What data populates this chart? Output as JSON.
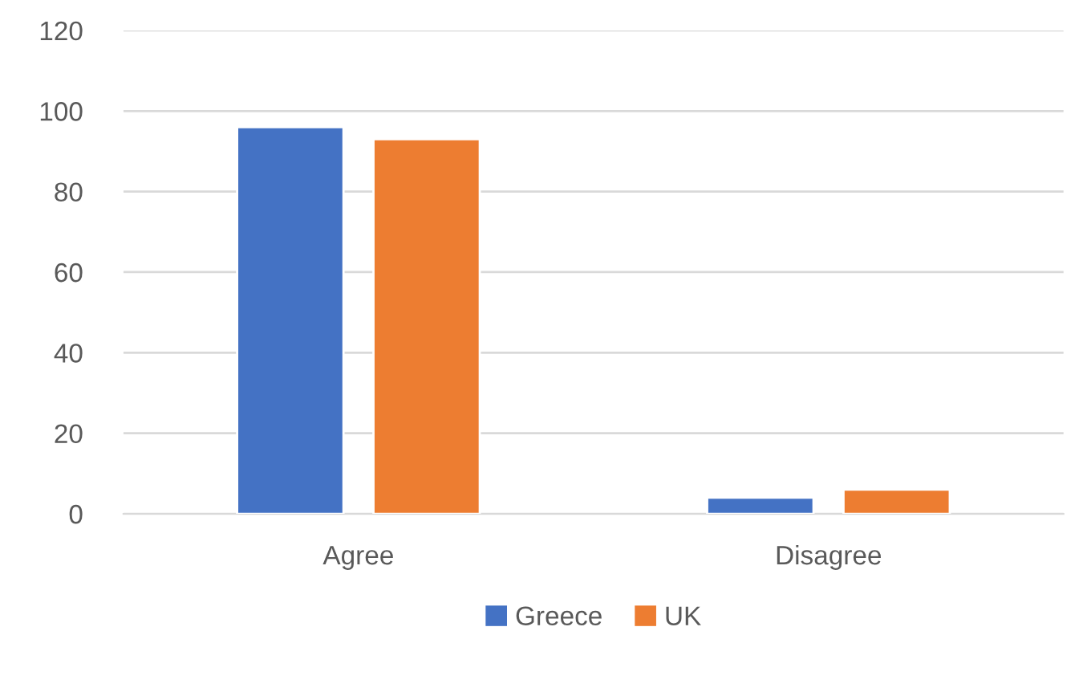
{
  "chart_data": {
    "type": "bar",
    "categories": [
      "Agree",
      "Disagree"
    ],
    "series": [
      {
        "name": "Greece",
        "color": "#4472c4",
        "values": [
          96,
          4
        ]
      },
      {
        "name": "UK",
        "color": "#ed7d31",
        "values": [
          93,
          6
        ]
      }
    ],
    "ylim": [
      0,
      120
    ],
    "yticks": [
      0,
      20,
      40,
      60,
      80,
      100,
      120
    ],
    "grid": "y",
    "legend": "bottom"
  }
}
